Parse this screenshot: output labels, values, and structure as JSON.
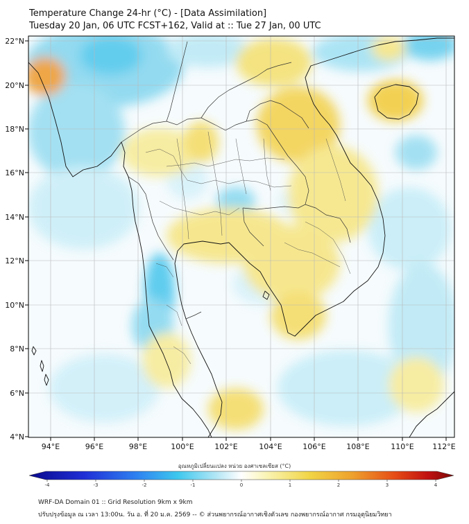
{
  "title": {
    "line1": "Temperature Change 24-hr (°C) - [Data Assimilation]",
    "line2": "Tuesday 20 Jan, 06 UTC FCST+162, Valid at :: Tue 27 Jan, 00 UTC"
  },
  "axes": {
    "lat_labels": [
      "22°N",
      "20°N",
      "18°N",
      "16°N",
      "14°N",
      "12°N",
      "10°N",
      "8°N",
      "6°N",
      "4°N"
    ],
    "lon_labels": [
      "94°E",
      "96°E",
      "98°E",
      "100°E",
      "102°E",
      "104°E",
      "106°E",
      "108°E",
      "110°E",
      "112°E"
    ]
  },
  "colorbar": {
    "title": "อุณหภูมิเปลี่ยนแปลง หน่วย องศาเซลเซียส (°C)",
    "tick_labels": [
      "-4",
      "-3",
      "-2",
      "-1",
      "0",
      "1",
      "2",
      "3",
      "4"
    ],
    "min": -4,
    "max": 4
  },
  "footer": {
    "line1": "WRF-DA Domain 01 :: Grid Resolution 9km x 9km",
    "line2": "ปรับปรุงข้อมูล ณ เวลา 13:00น. วัน อ. ที่ 20 ม.ค. 2569 -- © ส่วนพยากรณ์อากาศเชิงตัวเลข กองพยากรณ์อากาศ กรมอุตุนิยมวิทยา"
  },
  "colors": {
    "warm_light": "#f7ef9c",
    "warm_mid": "#f2cf4a",
    "warm_strong": "#ec8a2a",
    "neutral": "#f6fbfd",
    "cool_light": "#bfeaf6",
    "cool_mid": "#7fd5ef",
    "cool_strong": "#35bfe8",
    "coast": "#111111",
    "border": "#333333",
    "grid": "#b8b8b8"
  }
}
